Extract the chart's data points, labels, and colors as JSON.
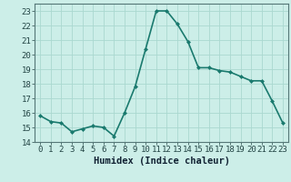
{
  "x": [
    0,
    1,
    2,
    3,
    4,
    5,
    6,
    7,
    8,
    9,
    10,
    11,
    12,
    13,
    14,
    15,
    16,
    17,
    18,
    19,
    20,
    21,
    22,
    23
  ],
  "y": [
    15.8,
    15.4,
    15.3,
    14.7,
    14.9,
    15.1,
    15.0,
    14.4,
    16.0,
    17.8,
    20.4,
    23.0,
    23.0,
    22.1,
    20.9,
    19.1,
    19.1,
    18.9,
    18.8,
    18.5,
    18.2,
    18.2,
    16.8,
    15.3
  ],
  "line_color": "#1a7a6e",
  "marker": "D",
  "marker_size": 2.0,
  "bg_color": "#cceee8",
  "grid_color": "#aad8d0",
  "xlabel": "Humidex (Indice chaleur)",
  "ylim": [
    14,
    23.5
  ],
  "yticks": [
    14,
    15,
    16,
    17,
    18,
    19,
    20,
    21,
    22,
    23
  ],
  "xlim": [
    -0.5,
    23.5
  ],
  "xticks": [
    0,
    1,
    2,
    3,
    4,
    5,
    6,
    7,
    8,
    9,
    10,
    11,
    12,
    13,
    14,
    15,
    16,
    17,
    18,
    19,
    20,
    21,
    22,
    23
  ],
  "xlabel_fontsize": 7.5,
  "tick_fontsize": 6.5,
  "line_width": 1.2
}
